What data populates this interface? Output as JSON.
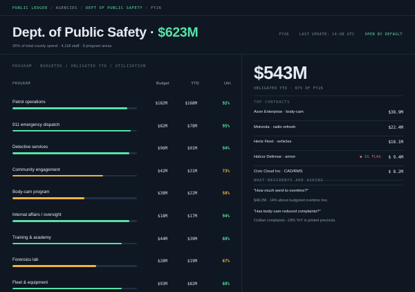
{
  "breadcrumb": [
    "PUBLIC LEDGER",
    "AGENCIES",
    "DEPT OF PUBLIC SAFETY",
    "FY26"
  ],
  "header": {
    "title": "Dept. of Public Safety · ",
    "amount": "$623M",
    "subtitle": "26% of total county spend · 4,118 staff · 9 program areas",
    "fiscal_year": "FY26",
    "last_update": "LAST UPDATE: 14:08 UTC",
    "open_label": "OPEN BY DEFAULT"
  },
  "table": {
    "section_label": "PROGRAM · BUDGETED / OBLIGATED YTD / UTILIZATION",
    "col_program": "PROGRAM",
    "col_budget": "Budget",
    "col_ytd": "YTD",
    "col_util": "Util.",
    "rows": [
      {
        "name": "Patrol operations",
        "budget": "$182M",
        "ytd": "$168M",
        "util": "92%",
        "util_value": 0.92,
        "status": "ok"
      },
      {
        "name": "911 emergency dispatch",
        "budget": "$82M",
        "ytd": "$78M",
        "util": "95%",
        "util_value": 0.95,
        "status": "ok"
      },
      {
        "name": "Detective services",
        "budget": "$96M",
        "ytd": "$91M",
        "util": "94%",
        "util_value": 0.94,
        "status": "ok"
      },
      {
        "name": "Community engagement",
        "budget": "$42M",
        "ytd": "$31M",
        "util": "73%",
        "util_value": 0.73,
        "status": "warn"
      },
      {
        "name": "Body-cam program",
        "budget": "$38M",
        "ytd": "$22M",
        "util": "58%",
        "util_value": 0.58,
        "status": "warn"
      },
      {
        "name": "Internal affairs / oversight",
        "budget": "$18M",
        "ytd": "$17M",
        "util": "94%",
        "util_value": 0.94,
        "status": "ok"
      },
      {
        "name": "Training & academy",
        "budget": "$44M",
        "ytd": "$39M",
        "util": "88%",
        "util_value": 0.88,
        "status": "ok"
      },
      {
        "name": "Forensics lab",
        "budget": "$28M",
        "ytd": "$19M",
        "util": "67%",
        "util_value": 0.67,
        "status": "warn"
      },
      {
        "name": "Fleet & equipment",
        "budget": "$93M",
        "ytd": "$82M",
        "util": "88%",
        "util_value": 0.88,
        "status": "ok"
      }
    ]
  },
  "summary": {
    "obligated": "$543M",
    "obligated_label": "OBLIGATED YTD · 87% OF FY26"
  },
  "contracts": {
    "label": "TOP CONTRACTS",
    "items": [
      {
        "name": "Axon Enterprise · body-cam",
        "amount": "$38.9M",
        "flag": ""
      },
      {
        "name": "Motorola · radio refresh",
        "amount": "$22.4M",
        "flag": ""
      },
      {
        "name": "Hertz Fleet · vehicles",
        "amount": "$18.1M",
        "flag": ""
      },
      {
        "name": "Halcor Defense · armor",
        "amount": "$ 9.4M",
        "flag": "● IG FLAG"
      },
      {
        "name": "Civic Cloud Inc · CAD/RMS",
        "amount": "$ 8.2M",
        "flag": ""
      }
    ]
  },
  "questions": {
    "label": "WHAT RESIDENTS ARE ASKING",
    "items": [
      {
        "q": "\"How much went to overtime?\"",
        "a": "$48.2M · 14% above budgeted overtime line."
      },
      {
        "q": "\"Has body-cam reduced complaints?\"",
        "a": "Civilian complaints −18% YoY in piloted precincts."
      }
    ]
  },
  "colors": {
    "ok": "#56e3a5",
    "warn": "#f2b441",
    "flag": "#ef6a6a",
    "background": "#0f1722"
  }
}
